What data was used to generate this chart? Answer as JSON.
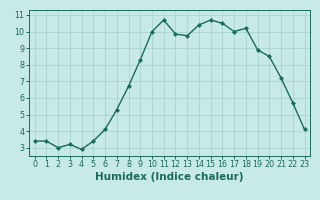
{
  "x": [
    0,
    1,
    2,
    3,
    4,
    5,
    6,
    7,
    8,
    9,
    10,
    11,
    12,
    13,
    14,
    15,
    16,
    17,
    18,
    19,
    20,
    21,
    22,
    23
  ],
  "y": [
    3.4,
    3.4,
    3.0,
    3.2,
    2.9,
    3.4,
    4.1,
    5.3,
    6.7,
    8.3,
    10.0,
    10.7,
    9.85,
    9.75,
    10.4,
    10.7,
    10.5,
    10.0,
    10.2,
    8.9,
    8.5,
    7.2,
    5.7,
    4.1
  ],
  "line_color": "#1a6b5a",
  "marker": "D",
  "marker_size": 2.0,
  "linewidth": 1.0,
  "xlabel": "Humidex (Indice chaleur)",
  "xlim": [
    -0.5,
    23.5
  ],
  "ylim": [
    2.5,
    11.3
  ],
  "yticks": [
    3,
    4,
    5,
    6,
    7,
    8,
    9,
    10,
    11
  ],
  "xticks": [
    0,
    1,
    2,
    3,
    4,
    5,
    6,
    7,
    8,
    9,
    10,
    11,
    12,
    13,
    14,
    15,
    16,
    17,
    18,
    19,
    20,
    21,
    22,
    23
  ],
  "bg_color": "#c8eae6",
  "grid_color": "#aad4cf",
  "tick_label_fontsize": 5.8,
  "xlabel_fontsize": 7.5
}
